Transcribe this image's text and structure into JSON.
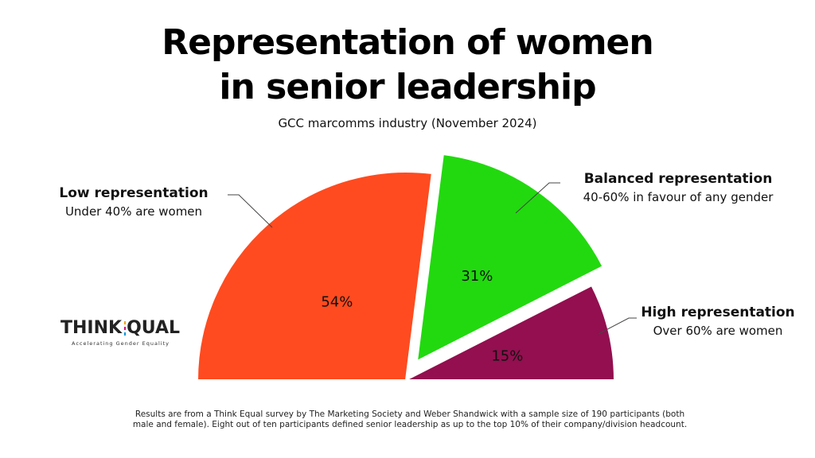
{
  "header": {
    "title_line1": "Representation of women",
    "title_line2": "in senior leadership",
    "subtitle": "GCC marcomms industry (November 2024)"
  },
  "chart_data": {
    "type": "pie",
    "layout": "semicircle, exploded slices",
    "slices": [
      {
        "name": "Low representation",
        "description": "Under 40% are women",
        "value": 54,
        "label": "54%",
        "color": "#ff4b1f"
      },
      {
        "name": "Balanced representation",
        "description": "40-60% in favour of any gender",
        "value": 31,
        "label": "31%",
        "color": "#22d90f"
      },
      {
        "name": "High representation",
        "description": "Over 60% are women",
        "value": 15,
        "label": "15%",
        "color": "#930f4f"
      }
    ]
  },
  "logo": {
    "word_left": "THINK",
    "word_right": "QUAL",
    "tagline": "Accelerating Gender Equality",
    "e_colors": [
      "#f4a100",
      "#e6007e",
      "#0095da",
      "#8dc63f"
    ]
  },
  "footnote": {
    "line1": "Results are from a Think Equal survey by The Marketing Society and Weber Shandwick with a sample size of 190 participants (both",
    "line2": "male and female). Eight out of ten participants defined senior leadership as up to the top 10% of their company/division headcount."
  }
}
